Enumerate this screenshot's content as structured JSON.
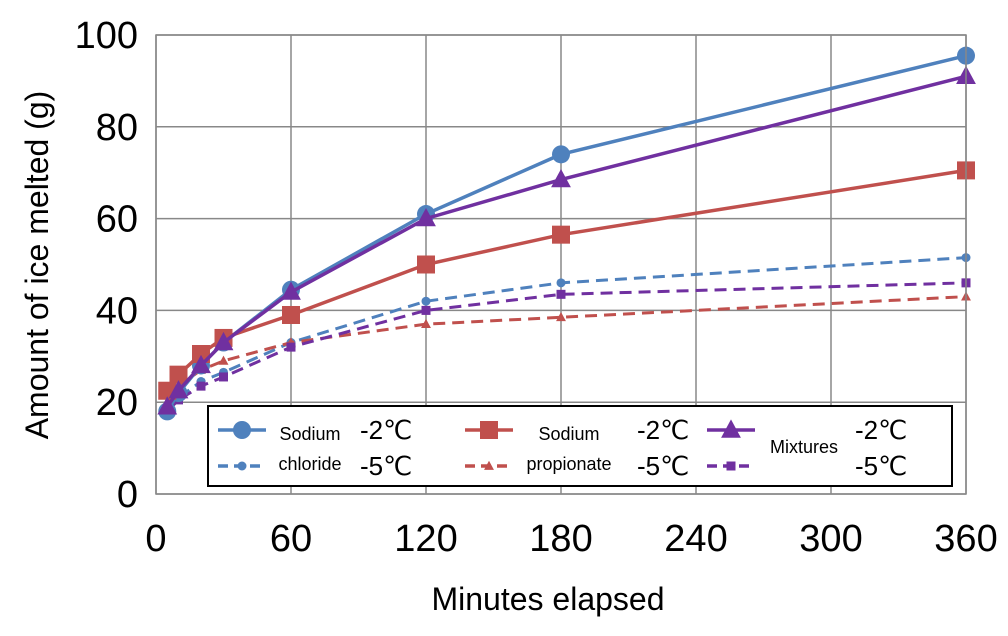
{
  "chart_data": {
    "type": "line",
    "xlabel": "Minutes elapsed",
    "ylabel": "Amount of ice melted (g)",
    "xlim": [
      0,
      360
    ],
    "ylim": [
      0,
      100
    ],
    "xticks": [
      "0",
      "60",
      "120",
      "180",
      "240",
      "300",
      "360"
    ],
    "xtick_values": [
      0,
      60,
      120,
      180,
      240,
      300,
      360
    ],
    "yticks": [
      "0",
      "20",
      "40",
      "60",
      "80",
      "100"
    ],
    "ytick_values": [
      0,
      20,
      40,
      60,
      80,
      100
    ],
    "grid": true,
    "legend_placement": "bottom-right",
    "legend": {
      "groups": [
        {
          "name_lines": [
            "Sodium",
            "chloride"
          ],
          "temps": [
            "-2℃",
            "-5℃"
          ]
        },
        {
          "name_lines": [
            "Sodium",
            "propionate"
          ],
          "temps": [
            "-2℃",
            "-5℃"
          ]
        },
        {
          "name_lines": [
            "Mixtures"
          ],
          "temps": [
            "-2℃",
            "-5℃"
          ]
        }
      ]
    },
    "series": [
      {
        "group": 0,
        "temp": "-2℃",
        "color": "#4F81BD",
        "marker": "circle",
        "dashed": false,
        "x": [
          5,
          10,
          20,
          30,
          60,
          120,
          180,
          360
        ],
        "y": [
          18,
          22,
          28,
          33,
          44.5,
          61,
          74,
          95.5
        ]
      },
      {
        "group": 1,
        "temp": "-2℃",
        "color": "#C0504D",
        "marker": "square",
        "dashed": false,
        "x": [
          5,
          10,
          20,
          30,
          60,
          120,
          180,
          360
        ],
        "y": [
          22.5,
          26,
          30.5,
          34,
          39,
          50,
          56.5,
          70.5
        ]
      },
      {
        "group": 2,
        "temp": "-2℃",
        "color": "#7030A0",
        "marker": "triangle",
        "dashed": false,
        "x": [
          5,
          10,
          20,
          30,
          60,
          120,
          180,
          360
        ],
        "y": [
          19,
          22.5,
          28,
          33,
          44,
          60,
          68.5,
          91
        ]
      },
      {
        "group": 0,
        "temp": "-5℃",
        "color": "#4F81BD",
        "marker": "circle",
        "dashed": true,
        "x": [
          5,
          10,
          20,
          30,
          60,
          120,
          180,
          360
        ],
        "y": [
          18,
          21,
          24.5,
          26.5,
          33,
          42,
          46,
          51.5
        ]
      },
      {
        "group": 1,
        "temp": "-5℃",
        "color": "#C0504D",
        "marker": "triangle",
        "dashed": true,
        "x": [
          5,
          10,
          20,
          30,
          60,
          120,
          180,
          360
        ],
        "y": [
          20,
          23.5,
          27,
          29,
          33,
          37,
          38.5,
          43
        ]
      },
      {
        "group": 2,
        "temp": "-5℃",
        "color": "#7030A0",
        "marker": "square",
        "dashed": true,
        "x": [
          5,
          10,
          20,
          30,
          60,
          120,
          180,
          360
        ],
        "y": [
          18,
          20.5,
          23.5,
          25.5,
          32,
          40,
          43.5,
          46
        ]
      }
    ]
  }
}
